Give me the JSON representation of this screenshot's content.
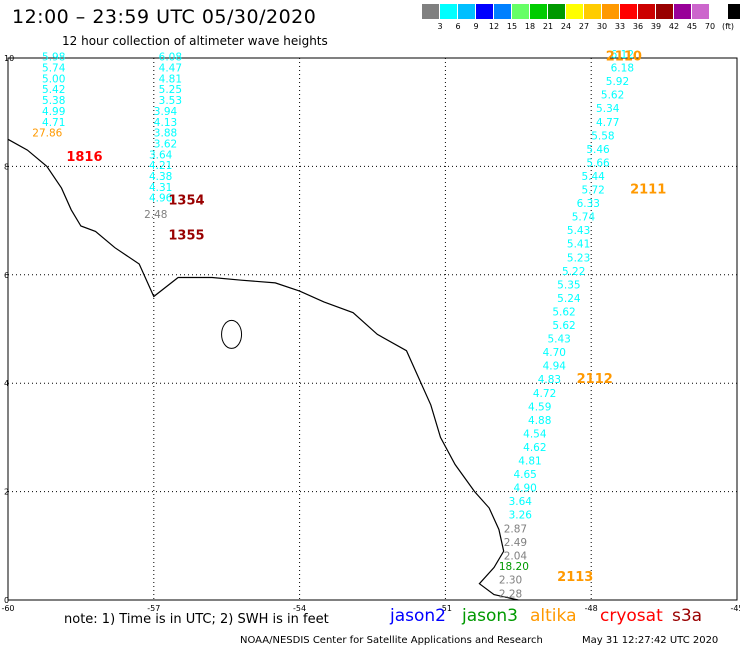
{
  "header": {
    "title": "12:00 – 23:59 UTC 05/30/2020",
    "subtitle": "12 hour collection of altimeter wave heights"
  },
  "colorbar": {
    "colors": [
      "#808080",
      "#00ffff",
      "#00bfff",
      "#0000ff",
      "#0080ff",
      "#66ff66",
      "#00cc00",
      "#009900",
      "#ffff00",
      "#ffcc00",
      "#ff9900",
      "#ff0000",
      "#cc0000",
      "#990000",
      "#990099",
      "#cc66cc",
      "#ffffff",
      "#000000"
    ],
    "labels": [
      "3",
      "6",
      "9",
      "12",
      "15",
      "18",
      "21",
      "24",
      "27",
      "30",
      "33",
      "36",
      "39",
      "42",
      "45",
      "70",
      "(ft)"
    ]
  },
  "axes": {
    "lon_ticks": [
      "-60",
      "-57",
      "-54",
      "-51",
      "-48",
      "-45"
    ],
    "lat_ticks": [
      "0",
      "2",
      "4",
      "6",
      "8",
      "10"
    ],
    "lon_range": [
      -60,
      -45
    ],
    "lat_range": [
      0,
      10
    ]
  },
  "map": {
    "coast": [
      [
        -60,
        8.5
      ],
      [
        -59.6,
        8.3
      ],
      [
        -59.2,
        8.0
      ],
      [
        -58.9,
        7.6
      ],
      [
        -58.7,
        7.2
      ],
      [
        -58.5,
        6.9
      ],
      [
        -58.2,
        6.8
      ],
      [
        -57.8,
        6.5
      ],
      [
        -57.3,
        6.2
      ],
      [
        -57.1,
        5.8
      ],
      [
        -57.0,
        5.6
      ],
      [
        -56.5,
        5.95
      ],
      [
        -55.8,
        5.95
      ],
      [
        -55.2,
        5.9
      ],
      [
        -54.5,
        5.85
      ],
      [
        -54.0,
        5.7
      ],
      [
        -53.5,
        5.5
      ],
      [
        -52.9,
        5.3
      ],
      [
        -52.4,
        4.9
      ],
      [
        -51.8,
        4.6
      ],
      [
        -51.6,
        4.2
      ],
      [
        -51.3,
        3.6
      ],
      [
        -51.1,
        3.0
      ],
      [
        -50.8,
        2.5
      ],
      [
        -50.4,
        2.0
      ],
      [
        -50.1,
        1.7
      ],
      [
        -49.9,
        1.3
      ],
      [
        -49.8,
        0.9
      ],
      [
        -50.0,
        0.6
      ],
      [
        -50.3,
        0.3
      ],
      [
        -50.0,
        0.1
      ],
      [
        -49.5,
        0.0
      ]
    ],
    "island": {
      "lon": -55.4,
      "lat": 4.9
    }
  },
  "tracks": [
    {
      "time": "1816",
      "time_color": "#ff0000",
      "label_lon": -58.8,
      "label_lat": 8.1,
      "points": [
        {
          "lon": -59.3,
          "lat": 9.95,
          "swh": "5.98",
          "color": "#00ffff"
        },
        {
          "lon": -59.3,
          "lat": 9.75,
          "swh": "5.74",
          "color": "#00ffff"
        },
        {
          "lon": -59.3,
          "lat": 9.55,
          "swh": "5.00",
          "color": "#00ffff"
        },
        {
          "lon": -59.3,
          "lat": 9.35,
          "swh": "5.42",
          "color": "#00ffff"
        },
        {
          "lon": -59.3,
          "lat": 9.15,
          "swh": "5.38",
          "color": "#00ffff"
        },
        {
          "lon": -59.3,
          "lat": 8.95,
          "swh": "4.99",
          "color": "#00ffff"
        },
        {
          "lon": -59.3,
          "lat": 8.75,
          "swh": "4.71",
          "color": "#00ffff"
        },
        {
          "lon": -59.5,
          "lat": 8.55,
          "swh": "27.86",
          "color": "#ff9900"
        }
      ]
    },
    {
      "time": "1354",
      "time_color": "#990000",
      "label_lon": -56.7,
      "label_lat": 7.3,
      "points": [
        {
          "lon": -56.9,
          "lat": 9.95,
          "swh": "6.08",
          "color": "#00ffff"
        },
        {
          "lon": -56.9,
          "lat": 9.75,
          "swh": "4.47",
          "color": "#00ffff"
        },
        {
          "lon": -56.9,
          "lat": 9.55,
          "swh": "4.81",
          "color": "#00ffff"
        },
        {
          "lon": -56.9,
          "lat": 9.35,
          "swh": "5.25",
          "color": "#00ffff"
        },
        {
          "lon": -56.9,
          "lat": 9.15,
          "swh": "3.53",
          "color": "#00ffff"
        },
        {
          "lon": -57.0,
          "lat": 8.95,
          "swh": "3.94",
          "color": "#00ffff"
        },
        {
          "lon": -57.0,
          "lat": 8.75,
          "swh": "4.13",
          "color": "#00ffff"
        },
        {
          "lon": -57.0,
          "lat": 8.55,
          "swh": "3.88",
          "color": "#00ffff"
        },
        {
          "lon": -57.0,
          "lat": 8.35,
          "swh": "3.62",
          "color": "#00ffff"
        },
        {
          "lon": -57.1,
          "lat": 8.15,
          "swh": "3.64",
          "color": "#00ffff"
        },
        {
          "lon": -57.1,
          "lat": 7.95,
          "swh": "4.21",
          "color": "#00ffff"
        },
        {
          "lon": -57.1,
          "lat": 7.75,
          "swh": "4.38",
          "color": "#00ffff"
        },
        {
          "lon": -57.1,
          "lat": 7.55,
          "swh": "4.31",
          "color": "#00ffff"
        },
        {
          "lon": -57.1,
          "lat": 7.35,
          "swh": "4.96",
          "color": "#00ffff"
        }
      ]
    },
    {
      "time": "1355",
      "time_color": "#990000",
      "label_lon": -56.7,
      "label_lat": 6.65,
      "points": [
        {
          "lon": -57.2,
          "lat": 7.05,
          "swh": "2.48",
          "color": "#808080"
        }
      ]
    },
    {
      "time": "2110",
      "time_color": "#ff9900",
      "label_lon": -47.7,
      "label_lat": 9.95,
      "points": [
        {
          "lon": -47.6,
          "lat": 10.0,
          "swh": "6.12",
          "color": "#00ffff"
        },
        {
          "lon": -47.6,
          "lat": 9.75,
          "swh": "6.18",
          "color": "#00ffff"
        },
        {
          "lon": -47.7,
          "lat": 9.5,
          "swh": "5.92",
          "color": "#00ffff"
        },
        {
          "lon": -47.8,
          "lat": 9.25,
          "swh": "5.62",
          "color": "#00ffff"
        },
        {
          "lon": -47.9,
          "lat": 9.0,
          "swh": "5.34",
          "color": "#00ffff"
        },
        {
          "lon": -47.9,
          "lat": 8.75,
          "swh": "4.77",
          "color": "#00ffff"
        },
        {
          "lon": -48.0,
          "lat": 8.5,
          "swh": "5.58",
          "color": "#00ffff"
        },
        {
          "lon": -48.1,
          "lat": 8.25,
          "swh": "5.46",
          "color": "#00ffff"
        },
        {
          "lon": -48.1,
          "lat": 8.0,
          "swh": "5.66",
          "color": "#00ffff"
        }
      ]
    },
    {
      "time": "2111",
      "time_color": "#ff9900",
      "label_lon": -47.2,
      "label_lat": 7.5,
      "points": [
        {
          "lon": -48.2,
          "lat": 7.75,
          "swh": "5.44",
          "color": "#00ffff"
        },
        {
          "lon": -48.2,
          "lat": 7.5,
          "swh": "5.72",
          "color": "#00ffff"
        },
        {
          "lon": -48.3,
          "lat": 7.25,
          "swh": "6.33",
          "color": "#00ffff"
        },
        {
          "lon": -48.4,
          "lat": 7.0,
          "swh": "5.74",
          "color": "#00ffff"
        },
        {
          "lon": -48.5,
          "lat": 6.75,
          "swh": "5.43",
          "color": "#00ffff"
        },
        {
          "lon": -48.5,
          "lat": 6.5,
          "swh": "5.41",
          "color": "#00ffff"
        },
        {
          "lon": -48.5,
          "lat": 6.25,
          "swh": "5.23",
          "color": "#00ffff"
        },
        {
          "lon": -48.6,
          "lat": 6.0,
          "swh": "5.22",
          "color": "#00ffff"
        },
        {
          "lon": -48.7,
          "lat": 5.75,
          "swh": "5.35",
          "color": "#00ffff"
        },
        {
          "lon": -48.7,
          "lat": 5.5,
          "swh": "5.24",
          "color": "#00ffff"
        },
        {
          "lon": -48.8,
          "lat": 5.25,
          "swh": "5.62",
          "color": "#00ffff"
        },
        {
          "lon": -48.8,
          "lat": 5.0,
          "swh": "5.62",
          "color": "#00ffff"
        },
        {
          "lon": -48.9,
          "lat": 4.75,
          "swh": "5.43",
          "color": "#00ffff"
        },
        {
          "lon": -49.0,
          "lat": 4.5,
          "swh": "4.70",
          "color": "#00ffff"
        },
        {
          "lon": -49.0,
          "lat": 4.25,
          "swh": "4.94",
          "color": "#00ffff"
        }
      ]
    },
    {
      "time": "2112",
      "time_color": "#ff9900",
      "label_lon": -48.3,
      "label_lat": 4.0,
      "points": [
        {
          "lon": -49.1,
          "lat": 4.0,
          "swh": "4.83",
          "color": "#00ffff"
        },
        {
          "lon": -49.2,
          "lat": 3.75,
          "swh": "4.72",
          "color": "#00ffff"
        },
        {
          "lon": -49.3,
          "lat": 3.5,
          "swh": "4.59",
          "color": "#00ffff"
        },
        {
          "lon": -49.3,
          "lat": 3.25,
          "swh": "4.88",
          "color": "#00ffff"
        },
        {
          "lon": -49.4,
          "lat": 3.0,
          "swh": "4.54",
          "color": "#00ffff"
        },
        {
          "lon": -49.4,
          "lat": 2.75,
          "swh": "4.62",
          "color": "#00ffff"
        },
        {
          "lon": -49.5,
          "lat": 2.5,
          "swh": "4.81",
          "color": "#00ffff"
        },
        {
          "lon": -49.6,
          "lat": 2.25,
          "swh": "4.65",
          "color": "#00ffff"
        },
        {
          "lon": -49.6,
          "lat": 2.0,
          "swh": "4.90",
          "color": "#00ffff"
        },
        {
          "lon": -49.7,
          "lat": 1.75,
          "swh": "3.64",
          "color": "#00ffff"
        },
        {
          "lon": -49.7,
          "lat": 1.5,
          "swh": "3.26",
          "color": "#00ffff"
        },
        {
          "lon": -49.8,
          "lat": 1.25,
          "swh": "2.87",
          "color": "#808080"
        },
        {
          "lon": -49.8,
          "lat": 1.0,
          "swh": "2.49",
          "color": "#808080"
        },
        {
          "lon": -49.8,
          "lat": 0.75,
          "swh": "2.04",
          "color": "#808080"
        }
      ]
    },
    {
      "time": "2113",
      "time_color": "#ff9900",
      "label_lon": -48.7,
      "label_lat": 0.35,
      "points": [
        {
          "lon": -49.9,
          "lat": 0.55,
          "swh": "18.20",
          "color": "#009900"
        },
        {
          "lon": -49.9,
          "lat": 0.3,
          "swh": "2.30",
          "color": "#808080"
        },
        {
          "lon": -49.9,
          "lat": 0.05,
          "swh": "2.28",
          "color": "#808080"
        }
      ]
    }
  ],
  "footer": {
    "note": "note: 1) Time is in UTC; 2) SWH is in feet",
    "legend": [
      {
        "name": "jason2",
        "color": "#0000ff"
      },
      {
        "name": "jason3",
        "color": "#009900"
      },
      {
        "name": "altika",
        "color": "#ff9900"
      },
      {
        "name": "cryosat",
        "color": "#ff0000"
      },
      {
        "name": "s3a",
        "color": "#990000"
      }
    ],
    "credit": "NOAA/NESDIS Center for Satellite Applications and Research",
    "timestamp": "May 31 12:27:42 UTC 2020"
  }
}
